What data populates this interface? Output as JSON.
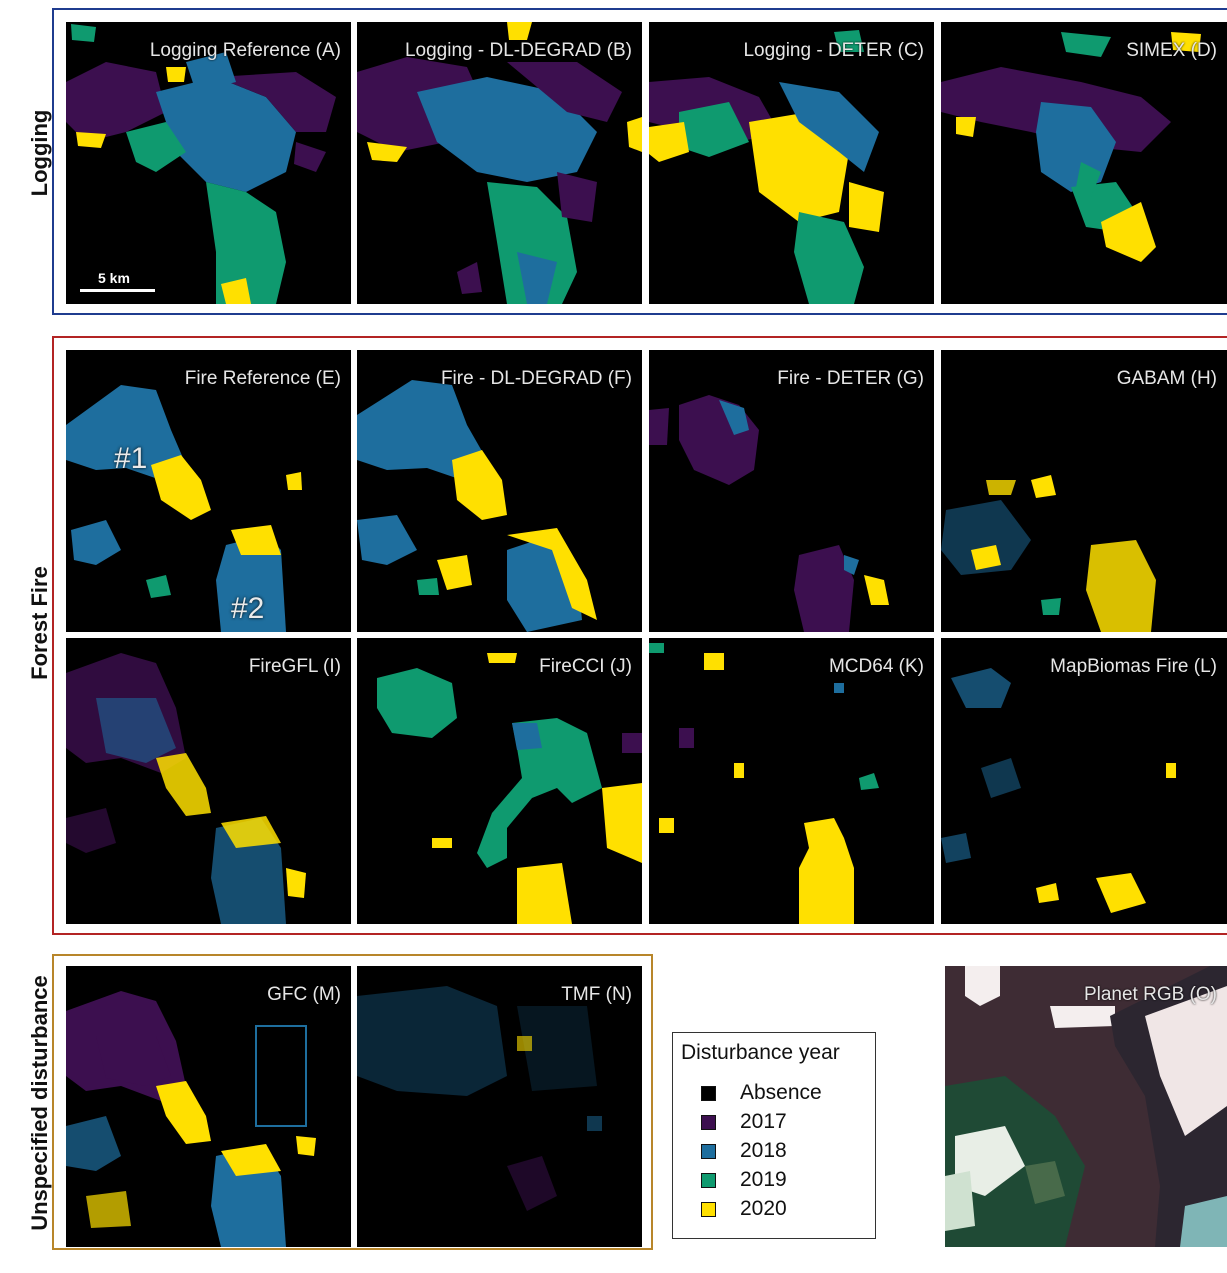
{
  "colors": {
    "absence": "#000000",
    "y2017": "#3c0f4f",
    "y2018": "#1e6e9e",
    "y2019": "#0f9a6f",
    "y2020": "#ffe000",
    "logging_box": "#1f3c8f",
    "fire_box": "#b32424",
    "unspecified_box": "#b8862a"
  },
  "groups": {
    "logging": "Logging",
    "fire": "Forest Fire",
    "unspecified": "Unspecified disturbance"
  },
  "panels": {
    "A": "Logging Reference (A)",
    "B": "Logging - DL-DEGRAD (B)",
    "C": "Logging - DETER (C)",
    "D": "SIMEX (D)",
    "E": "Fire Reference (E)",
    "F": "Fire - DL-DEGRAD (F)",
    "G": "Fire - DETER (G)",
    "H": "GABAM (H)",
    "I": "FireGFL (I)",
    "J": "FireCCI (J)",
    "K": "MCD64 (K)",
    "L": "MapBiomas Fire (L)",
    "M": "GFC (M)",
    "N": "TMF (N)",
    "O": "Planet RGB (O)"
  },
  "annotations": {
    "m1": "#1",
    "m2": "#2"
  },
  "scale": "5 km",
  "legend": {
    "title": "Disturbance year",
    "items": [
      {
        "label": "Absence",
        "color": "#000000"
      },
      {
        "label": "2017",
        "color": "#3c0f4f"
      },
      {
        "label": "2018",
        "color": "#1e6e9e"
      },
      {
        "label": "2019",
        "color": "#0f9a6f"
      },
      {
        "label": "2020",
        "color": "#ffe000"
      }
    ]
  }
}
